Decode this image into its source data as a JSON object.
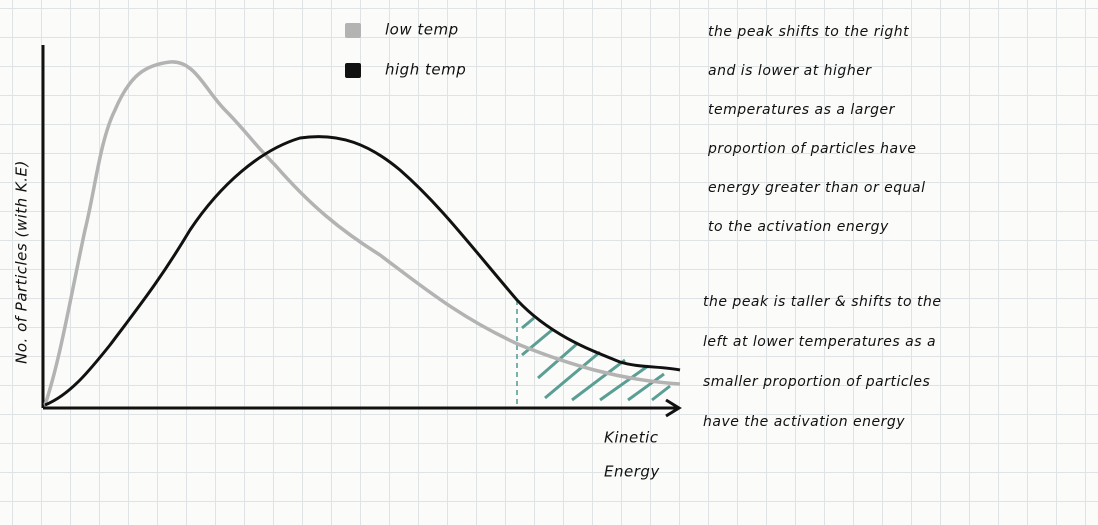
{
  "legend": [
    "low temp",
    "high temp"
  ],
  "y_axis_label": "No. of Particles (with K.E)",
  "x_axis_label": [
    "Kinetic",
    "Energy"
  ],
  "notes": [
    [
      "the peak shifts to the right",
      "and is lower at higher",
      "temperatures as a larger",
      "proportion of particles have",
      "energy greater than or equal",
      "to the activation energy"
    ],
    [
      "the peak is taller & shifts to the",
      "left at lower temperatures as a",
      "smaller proportion of particles",
      "have the activation energy"
    ]
  ]
}
